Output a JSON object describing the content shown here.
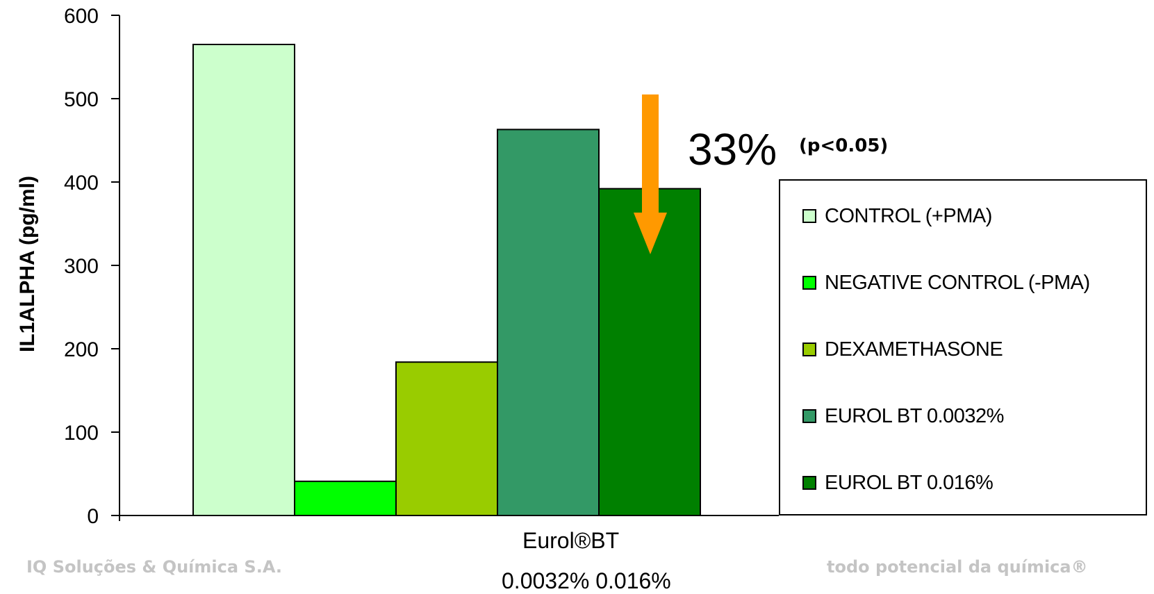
{
  "chart_data": {
    "type": "bar",
    "categories": [
      "Eurol®BT"
    ],
    "sub_label": "0.0032%  0.016%",
    "ylabel": "IL1ALPHA (pg/ml)",
    "xlabel": "Eurol®BT",
    "ylim": [
      0,
      600
    ],
    "yticks": [
      0,
      100,
      200,
      300,
      400,
      500,
      600
    ],
    "grid": false,
    "legend_position": "right",
    "series": [
      {
        "name": "CONTROL (+PMA)",
        "value": 565,
        "color": "#ccffcc"
      },
      {
        "name": "NEGATIVE CONTROL (-PMA)",
        "value": 41,
        "color": "#00ff00"
      },
      {
        "name": "DEXAMETHASONE",
        "value": 184,
        "color": "#99cc00"
      },
      {
        "name": "EUROL BT 0.0032%",
        "value": 463,
        "color": "#339966"
      },
      {
        "name": "EUROL BT 0.016%",
        "value": 392,
        "color": "#008000"
      }
    ],
    "annotations": {
      "reduction": "33%",
      "significance": "(p<0.05)",
      "arrow_color": "#ff9900"
    }
  },
  "footer": {
    "left": "IQ Soluções & Química S.A.",
    "right": "todo potencial da química®"
  }
}
